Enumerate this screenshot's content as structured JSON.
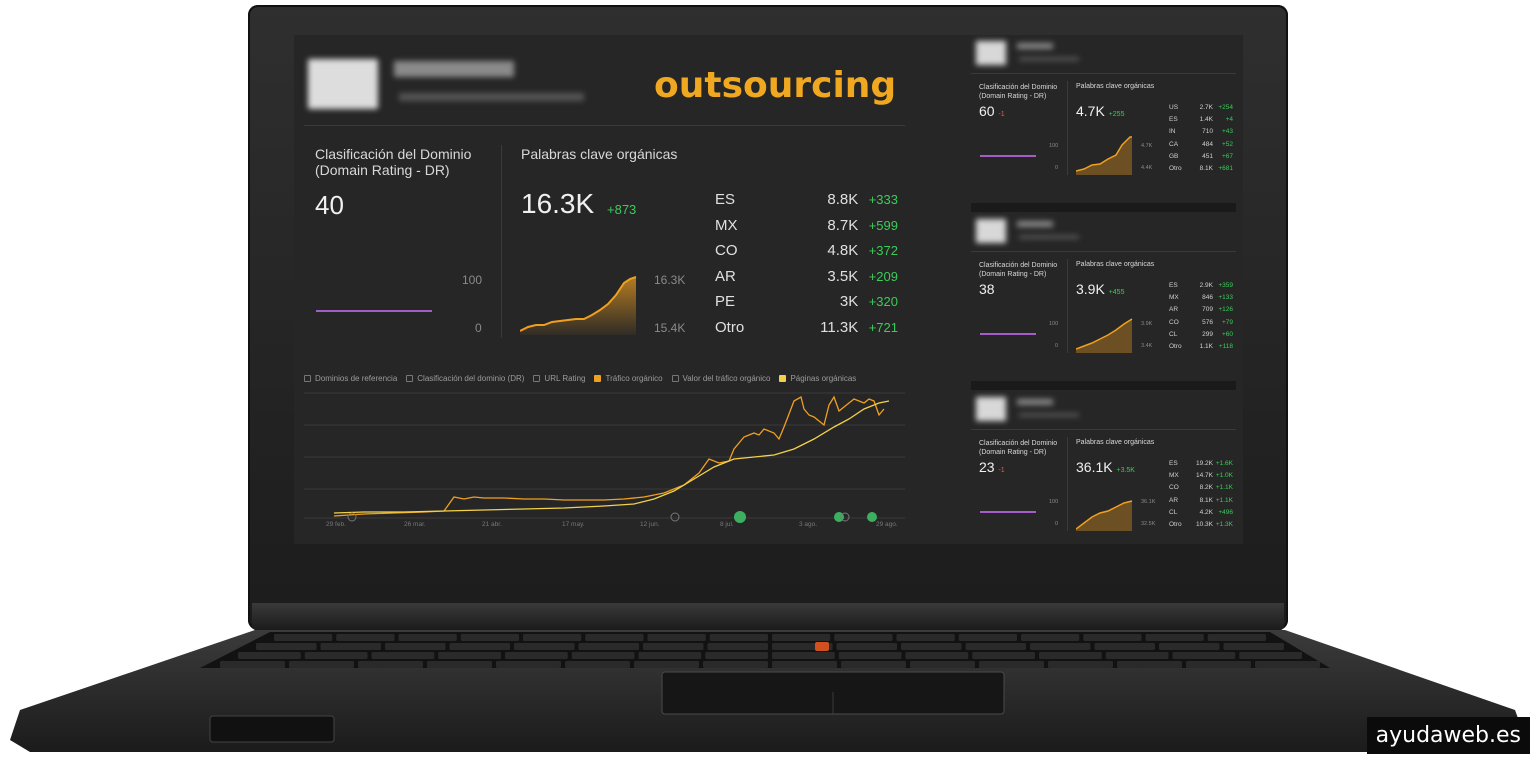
{
  "overlay_title": "outsourcing",
  "watermark": "ayudaweb.es",
  "main": {
    "dr_label_line1": "Clasificación del Dominio",
    "dr_label_line2": "(Domain Rating - DR)",
    "dr_value": "40",
    "dr_axis_max": "100",
    "dr_axis_min": "0",
    "kw_label": "Palabras clave orgánicas",
    "kw_value": "16.3K",
    "kw_delta": "+873",
    "kw_axis_max": "16.3K",
    "kw_axis_min": "15.4K",
    "countries": [
      {
        "code": "ES",
        "value": "8.8K",
        "delta": "+333"
      },
      {
        "code": "MX",
        "value": "8.7K",
        "delta": "+599"
      },
      {
        "code": "CO",
        "value": "4.8K",
        "delta": "+372"
      },
      {
        "code": "AR",
        "value": "3.5K",
        "delta": "+209"
      },
      {
        "code": "PE",
        "value": "3K",
        "delta": "+320"
      },
      {
        "code": "Otro",
        "value": "11.3K",
        "delta": "+721"
      }
    ],
    "legend": [
      {
        "label": "Dominios de referencia",
        "checked": false
      },
      {
        "label": "Clasificación del dominio (DR)",
        "checked": false
      },
      {
        "label": "URL Rating",
        "checked": false
      },
      {
        "label": "Tráfico orgánico",
        "checked": true,
        "color": "#f0a020"
      },
      {
        "label": "Valor del tráfico orgánico",
        "checked": false
      },
      {
        "label": "Páginas orgánicas",
        "checked": true,
        "color": "#f3d24a"
      }
    ],
    "x_ticks": [
      "29 feb.",
      "26 mar.",
      "21 abr.",
      "17 may.",
      "12 jun.",
      "8 jul.",
      "3 ago.",
      "29 ago."
    ]
  },
  "cards": [
    {
      "dr_label_line1": "Clasificación del Dominio",
      "dr_label_line2": "(Domain Rating - DR)",
      "dr_value": "60",
      "dr_delta": "-1",
      "kw_label": "Palabras clave orgánicas",
      "kw_value": "4.7K",
      "kw_delta": "+255",
      "axis_max": "100",
      "axis_min": "0",
      "kw_axis_max": "4.7K",
      "kw_axis_min": "4.4K",
      "countries": [
        {
          "code": "US",
          "value": "2.7K",
          "delta": "+254"
        },
        {
          "code": "ES",
          "value": "1.4K",
          "delta": "+4"
        },
        {
          "code": "IN",
          "value": "710",
          "delta": "+43"
        },
        {
          "code": "CA",
          "value": "484",
          "delta": "+52"
        },
        {
          "code": "GB",
          "value": "451",
          "delta": "+67"
        },
        {
          "code": "Otro",
          "value": "8.1K",
          "delta": "+681"
        }
      ]
    },
    {
      "dr_label_line1": "Clasificación del Dominio",
      "dr_label_line2": "(Domain Rating - DR)",
      "dr_value": "38",
      "dr_delta": "",
      "kw_label": "Palabras clave orgánicas",
      "kw_value": "3.9K",
      "kw_delta": "+455",
      "axis_max": "100",
      "axis_min": "0",
      "kw_axis_max": "3.9K",
      "kw_axis_min": "3.4K",
      "countries": [
        {
          "code": "ES",
          "value": "2.9K",
          "delta": "+359"
        },
        {
          "code": "MX",
          "value": "846",
          "delta": "+133"
        },
        {
          "code": "AR",
          "value": "709",
          "delta": "+126"
        },
        {
          "code": "CO",
          "value": "576",
          "delta": "+79"
        },
        {
          "code": "CL",
          "value": "299",
          "delta": "+60"
        },
        {
          "code": "Otro",
          "value": "1.1K",
          "delta": "+118"
        }
      ]
    },
    {
      "dr_label_line1": "Clasificación del Dominio",
      "dr_label_line2": "(Domain Rating - DR)",
      "dr_value": "23",
      "dr_delta": "-1",
      "kw_label": "Palabras clave orgánicas",
      "kw_value": "36.1K",
      "kw_delta": "+3.5K",
      "axis_max": "100",
      "axis_min": "0",
      "kw_axis_max": "36.1K",
      "kw_axis_min": "32.5K",
      "countries": [
        {
          "code": "ES",
          "value": "19.2K",
          "delta": "+1.6K"
        },
        {
          "code": "MX",
          "value": "14.7K",
          "delta": "+1.0K"
        },
        {
          "code": "CO",
          "value": "8.2K",
          "delta": "+1.1K"
        },
        {
          "code": "AR",
          "value": "8.1K",
          "delta": "+1.1K"
        },
        {
          "code": "CL",
          "value": "4.2K",
          "delta": "+496"
        },
        {
          "code": "Otro",
          "value": "10.3K",
          "delta": "+1.3K"
        }
      ]
    }
  ],
  "colors": {
    "accent_orange": "#f0a020",
    "accent_yellow": "#f3d24a",
    "positive": "#3ccb5a",
    "negative": "#e85a4f",
    "dr_line": "#a45cc8",
    "screen_bg": "#262626"
  }
}
